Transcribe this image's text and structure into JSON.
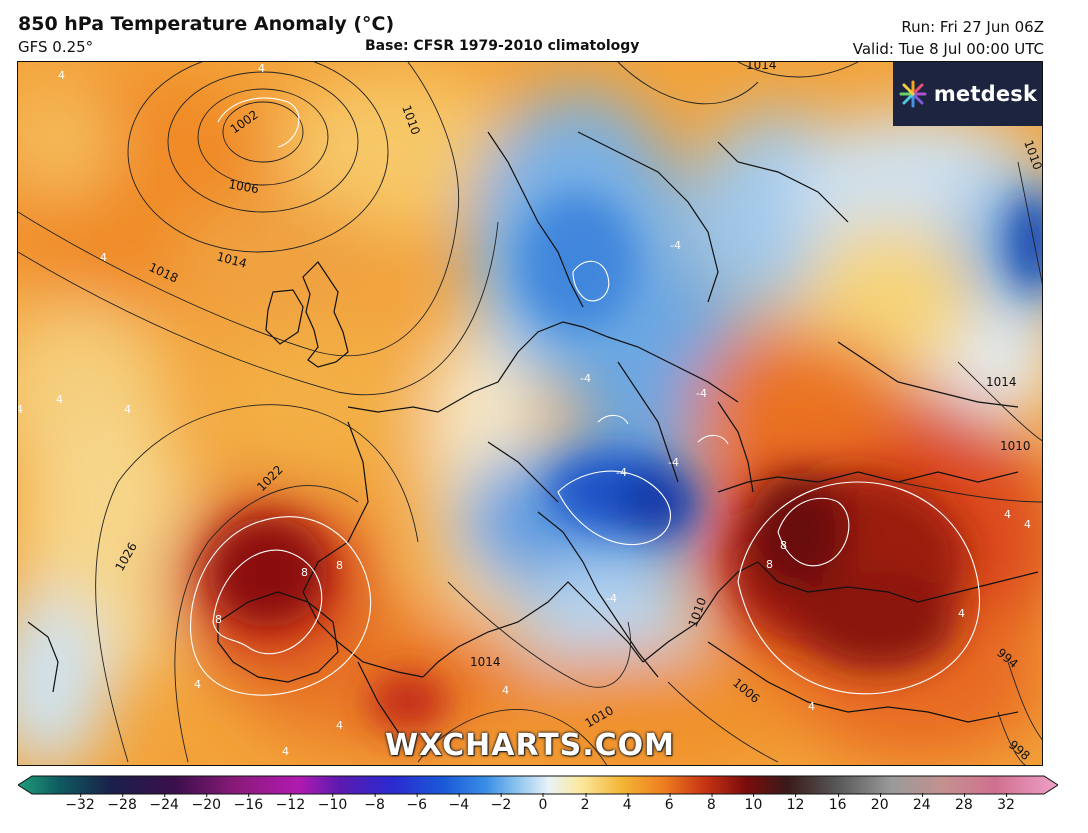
{
  "header": {
    "title": "850 hPa Temperature Anomaly (°C)",
    "model": "GFS 0.25°",
    "base": "Base: CFSR 1979-2010 climatology",
    "run": "Run: Fri 27 Jun 06Z",
    "valid": "Valid: Tue 8 Jul 00:00 UTC"
  },
  "logo": {
    "text": "metdesk",
    "icon": "starburst-logo-icon"
  },
  "watermark": "WXCHARTS.COM",
  "isobar_labels": [
    "1002",
    "1006",
    "1010",
    "1014",
    "1018",
    "1022",
    "1026",
    "1014",
    "1010",
    "1014",
    "1010",
    "1014",
    "1006",
    "1010",
    "1010",
    "994",
    "998"
  ],
  "anomaly_labels": [
    "4",
    "4",
    "4",
    "4",
    "4",
    "4",
    "-4",
    "-4",
    "-4",
    "-4",
    "-4",
    "-4",
    "-4",
    "8",
    "8",
    "8",
    "8",
    "4",
    "4",
    "4",
    "8",
    "4",
    "4",
    "4",
    "4",
    "4"
  ],
  "colorbar": {
    "ticks": [
      "−32",
      "−28",
      "−24",
      "−20",
      "−16",
      "−12",
      "−10",
      "−8",
      "−6",
      "−4",
      "−2",
      "0",
      "2",
      "4",
      "6",
      "8",
      "10",
      "12",
      "16",
      "20",
      "24",
      "28",
      "32"
    ],
    "colors": [
      "#1f9e7a",
      "#0e5a5f",
      "#1a1f4a",
      "#3a0f4a",
      "#8a1a7a",
      "#b01ab0",
      "#5a1ab0",
      "#2a2ad0",
      "#1a5ad8",
      "#3a8ee6",
      "#8cc4ee",
      "#e8f2f8",
      "#fbe9a0",
      "#f4b637",
      "#ee7f1f",
      "#c83414",
      "#7a0c0c",
      "#3a1a1a",
      "#5a5a5a",
      "#9a9a9a",
      "#c49090",
      "#d07090",
      "#f0a0c8"
    ]
  },
  "colors": {
    "warm_orange": "#f29a2e",
    "hot_red": "#c63216",
    "deep_red": "#6e0a0a",
    "cool_blue": "#4a8fd8",
    "deep_blue": "#1a3ea8",
    "pale_yellow": "#f7d77a"
  }
}
